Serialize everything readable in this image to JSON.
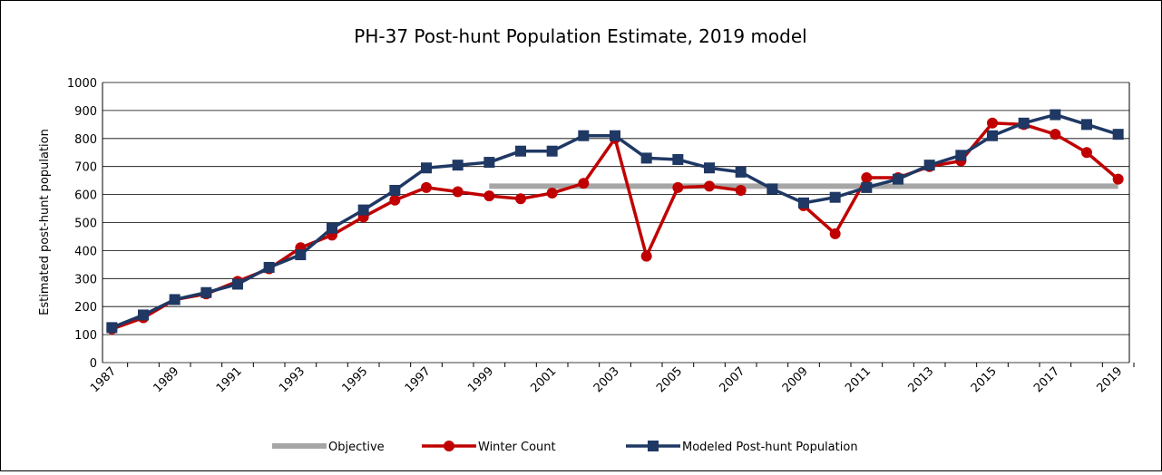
{
  "chart_data": {
    "type": "line",
    "title": "PH-37 Post-hunt Population Estimate, 2019 model",
    "y_label": "Estimated  post-hunt population",
    "categories": [
      "1987",
      null,
      "1989",
      null,
      "1991",
      null,
      "1993",
      null,
      "1995",
      null,
      "1997",
      null,
      "1999",
      null,
      "2001",
      null,
      "2003",
      null,
      "2005",
      null,
      "2007",
      null,
      "2009",
      null,
      "2011",
      null,
      "2013",
      null,
      "2015",
      null,
      "2017",
      null,
      "2019"
    ],
    "series": [
      {
        "name": "Objective",
        "color": "#a6a6a6",
        "marker": "none",
        "values": [
          null,
          null,
          null,
          null,
          null,
          null,
          null,
          null,
          null,
          null,
          null,
          null,
          630,
          630,
          630,
          630,
          630,
          630,
          630,
          630,
          630,
          630,
          630,
          630,
          630,
          630,
          630,
          630,
          630,
          630,
          630,
          630,
          630
        ]
      },
      {
        "name": "Winter Count",
        "color": "#c00000",
        "marker": "circle",
        "values": [
          120,
          160,
          225,
          245,
          290,
          335,
          410,
          455,
          520,
          580,
          625,
          610,
          595,
          585,
          605,
          640,
          800,
          380,
          625,
          630,
          615,
          null,
          560,
          460,
          660,
          660,
          700,
          720,
          855,
          850,
          815,
          750,
          655
        ]
      },
      {
        "name": "Modeled Post-hunt Population",
        "color": "#1f3864",
        "marker": "square",
        "values": [
          125,
          170,
          225,
          250,
          280,
          340,
          385,
          480,
          545,
          615,
          695,
          705,
          715,
          755,
          755,
          810,
          810,
          730,
          725,
          695,
          680,
          620,
          570,
          590,
          625,
          655,
          705,
          740,
          810,
          855,
          885,
          850,
          815
        ]
      }
    ],
    "ylim": [
      0,
      1000
    ],
    "yticks": [
      0,
      100,
      200,
      300,
      400,
      500,
      600,
      700,
      800,
      900,
      1000
    ],
    "grid": true,
    "legend": "bottom"
  }
}
